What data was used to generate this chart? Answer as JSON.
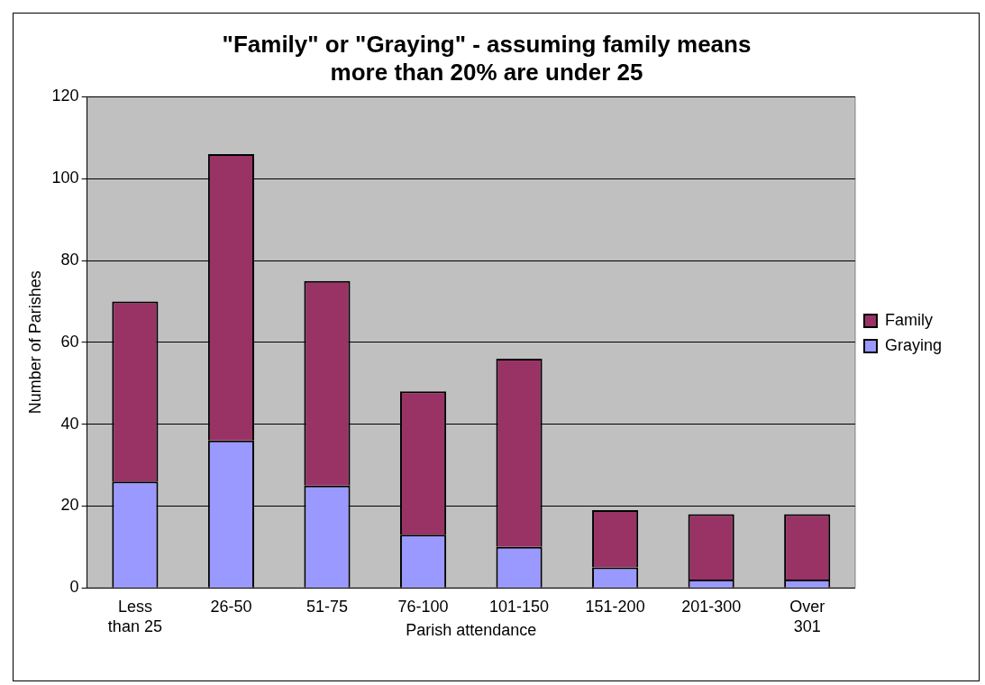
{
  "chart_data": {
    "type": "bar",
    "title": "\"Family\" or \"Graying\" - assuming family means more than 20% are under 25",
    "xlabel": "Parish attendance",
    "ylabel": "Number of Parishes",
    "categories": [
      "Less than 25",
      "26-50",
      "51-75",
      "76-100",
      "101-150",
      "151-200",
      "201-300",
      "Over 301"
    ],
    "stacked": true,
    "series": [
      {
        "name": "Graying",
        "color": "#9999ff",
        "values": [
          26,
          36,
          25,
          13,
          10,
          5,
          2,
          2
        ]
      },
      {
        "name": "Family",
        "color": "#993366",
        "values": [
          44,
          70,
          50,
          35,
          46,
          14,
          16,
          16
        ]
      }
    ],
    "ylim": [
      0,
      120
    ],
    "yticks": [
      0,
      20,
      40,
      60,
      80,
      100,
      120
    ],
    "grid": "y",
    "legend": "right"
  }
}
